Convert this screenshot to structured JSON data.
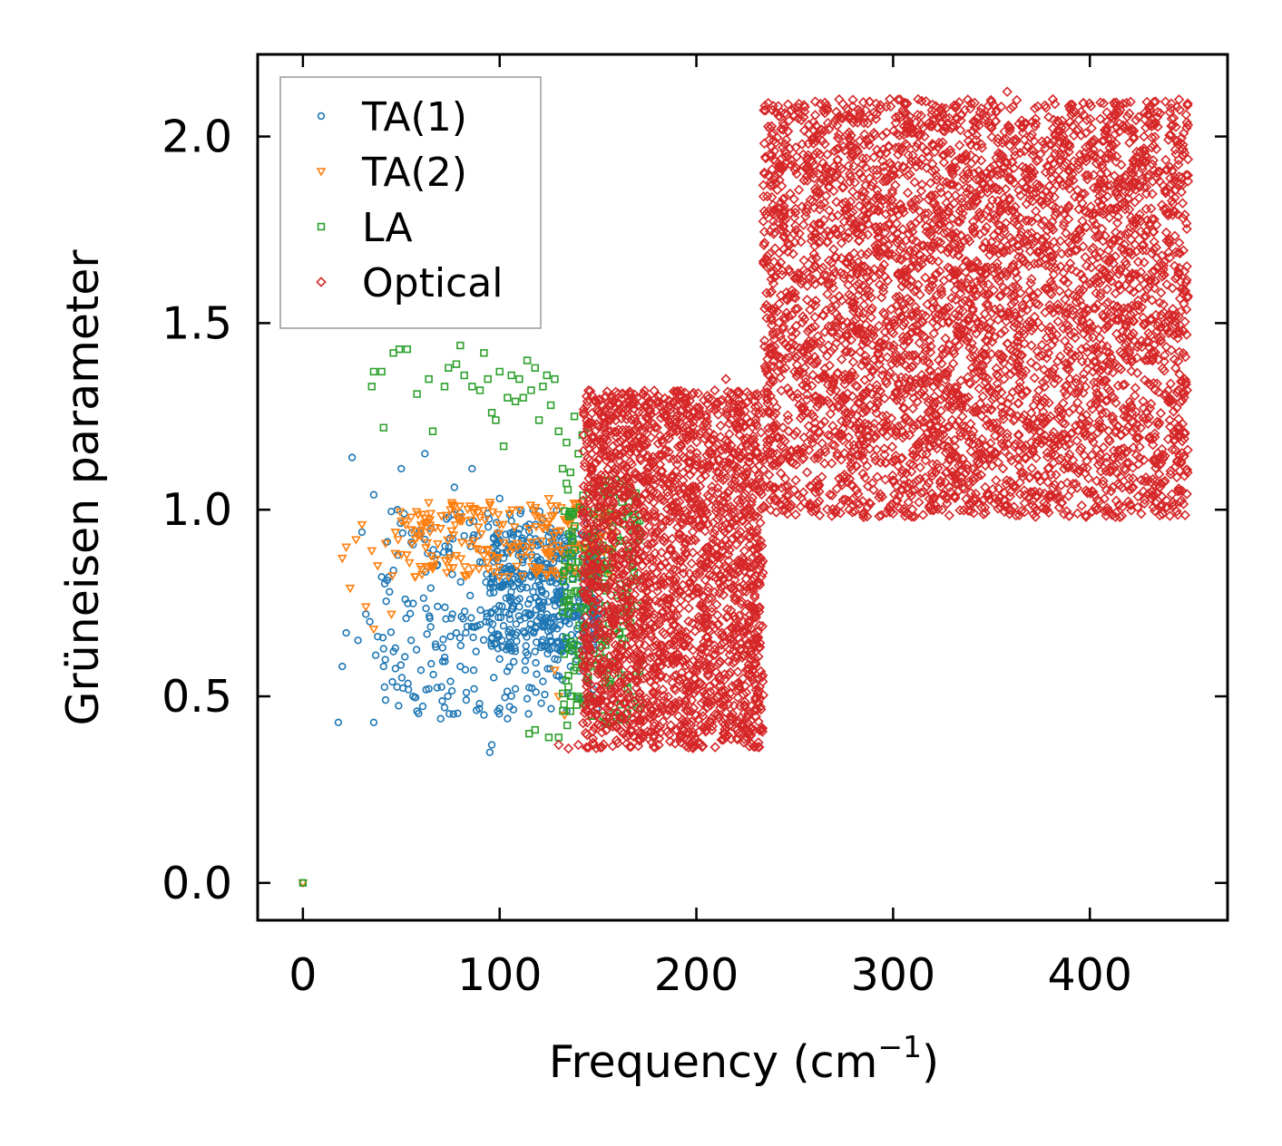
{
  "chart_data": {
    "type": "scatter",
    "title": "",
    "xlabel": "Frequency (cm",
    "xlabel_sup": "−1",
    "xlabel_close": ")",
    "ylabel": "Grüneisen parameter",
    "xlim": [
      -23,
      470
    ],
    "ylim": [
      -0.1,
      2.22
    ],
    "xticks": [
      0,
      100,
      200,
      300,
      400
    ],
    "xtick_labels": [
      "0",
      "100",
      "200",
      "300",
      "400"
    ],
    "yticks": [
      0.0,
      0.5,
      1.0,
      1.5,
      2.0
    ],
    "ytick_labels": [
      "0.0",
      "0.5",
      "1.0",
      "1.5",
      "2.0"
    ],
    "grid": false,
    "legend_position": "top-left",
    "series": [
      {
        "name": "TA(1)",
        "marker": "circle",
        "color": "#1f77b4",
        "points": [
          [
            0,
            0
          ],
          [
            18,
            0.43
          ],
          [
            20,
            0.58
          ],
          [
            22,
            0.67
          ],
          [
            25,
            1.14
          ],
          [
            28,
            0.65
          ],
          [
            30,
            0.94
          ],
          [
            32,
            0.72
          ],
          [
            34,
            0.7
          ],
          [
            36,
            0.43
          ],
          [
            36,
            1.04
          ],
          [
            37,
            0.61
          ],
          [
            38,
            0.66
          ],
          [
            40,
            0.82
          ],
          [
            41,
            0.58
          ],
          [
            42,
            0.49
          ],
          [
            44,
            0.78
          ],
          [
            46,
            0.62
          ],
          [
            48,
            1.0
          ],
          [
            50,
            1.11
          ],
          [
            52,
            0.76
          ],
          [
            55,
            0.65
          ],
          [
            56,
            0.5
          ],
          [
            58,
            0.46
          ],
          [
            60,
            0.57
          ],
          [
            62,
            0.92
          ],
          [
            62,
            1.15
          ],
          [
            64,
            0.52
          ],
          [
            65,
            0.79
          ],
          [
            68,
            0.85
          ],
          [
            70,
            0.44
          ],
          [
            71,
            0.63
          ],
          [
            72,
            0.47
          ],
          [
            74,
            0.98
          ],
          [
            75,
            0.54
          ],
          [
            76,
            0.72
          ],
          [
            77,
            1.06
          ],
          [
            78,
            0.67
          ],
          [
            80,
            0.58
          ],
          [
            82,
            0.93
          ],
          [
            83,
            0.49
          ],
          [
            85,
            0.77
          ],
          [
            86,
            1.11
          ],
          [
            87,
            0.52
          ],
          [
            88,
            0.62
          ],
          [
            90,
            0.86
          ],
          [
            92,
            0.45
          ],
          [
            93,
            0.7
          ],
          [
            94,
            0.99
          ],
          [
            95,
            0.35
          ],
          [
            96,
            0.37
          ],
          [
            97,
            0.55
          ],
          [
            98,
            0.88
          ],
          [
            99,
            0.46
          ],
          [
            100,
            0.6
          ],
          [
            100,
            1.03
          ],
          [
            102,
            0.8
          ],
          [
            104,
            0.44
          ],
          [
            105,
            0.66
          ],
          [
            106,
            0.97
          ],
          [
            108,
            0.52
          ],
          [
            110,
            0.74
          ],
          [
            112,
            0.9
          ],
          [
            113,
            0.57
          ],
          [
            115,
            0.68
          ],
          [
            117,
            1.0
          ],
          [
            118,
            0.62
          ],
          [
            120,
            0.83
          ],
          [
            122,
            0.54
          ],
          [
            124,
            0.72
          ],
          [
            126,
            0.95
          ],
          [
            128,
            0.6
          ],
          [
            130,
            0.78
          ],
          [
            132,
            0.66
          ],
          [
            134,
            0.88
          ],
          [
            136,
            0.58
          ],
          [
            138,
            0.74
          ],
          [
            140,
            0.82
          ],
          [
            142,
            0.7
          ],
          [
            144,
            0.64
          ],
          [
            146,
            0.77
          ],
          [
            148,
            0.68
          ],
          [
            150,
            0.72
          ]
        ],
        "dense": [
          {
            "x": [
              40,
              152
            ],
            "y": [
              0.45,
              1.0
            ],
            "n": 260
          },
          {
            "x": [
              95,
              152
            ],
            "y": [
              0.62,
              0.95
            ],
            "n": 380
          }
        ]
      },
      {
        "name": "TA(2)",
        "marker": "triangle-down",
        "color": "#ff7f0e",
        "points": [
          [
            0,
            0
          ],
          [
            20,
            0.87
          ],
          [
            22,
            0.9
          ],
          [
            24,
            0.79
          ],
          [
            27,
            0.92
          ],
          [
            30,
            0.96
          ],
          [
            32,
            0.74
          ],
          [
            35,
            0.89
          ],
          [
            36,
            0.68
          ],
          [
            38,
            0.85
          ],
          [
            42,
            0.91
          ],
          [
            45,
            0.72
          ],
          [
            47,
            0.94
          ],
          [
            50,
            0.88
          ],
          [
            55,
            0.98
          ],
          [
            60,
            0.93
          ],
          [
            65,
            0.99
          ],
          [
            70,
            0.95
          ],
          [
            75,
            1.0
          ],
          [
            80,
            0.97
          ],
          [
            85,
            1.01
          ],
          [
            90,
            0.98
          ],
          [
            95,
            1.02
          ],
          [
            100,
            0.96
          ],
          [
            105,
            0.99
          ],
          [
            110,
            1.0
          ],
          [
            115,
            0.95
          ],
          [
            120,
            0.98
          ],
          [
            125,
            1.03
          ],
          [
            128,
            0.57
          ],
          [
            130,
            0.5
          ],
          [
            133,
            0.45
          ],
          [
            135,
            0.97
          ],
          [
            140,
            0.99
          ],
          [
            145,
            0.95
          ],
          [
            150,
            0.93
          ]
        ],
        "dense": [
          {
            "x": [
              45,
              158
            ],
            "y": [
              0.82,
              1.02
            ],
            "n": 220
          }
        ]
      },
      {
        "name": "LA",
        "marker": "square",
        "color": "#2ca02c",
        "points": [
          [
            0,
            0
          ],
          [
            35,
            1.33
          ],
          [
            36,
            1.37
          ],
          [
            40,
            1.37
          ],
          [
            41,
            1.22
          ],
          [
            46,
            1.42
          ],
          [
            49,
            1.43
          ],
          [
            53,
            1.43
          ],
          [
            58,
            1.31
          ],
          [
            64,
            1.35
          ],
          [
            66,
            1.21
          ],
          [
            72,
            1.33
          ],
          [
            74,
            1.38
          ],
          [
            78,
            1.39
          ],
          [
            80,
            1.44
          ],
          [
            82,
            1.36
          ],
          [
            86,
            1.33
          ],
          [
            90,
            1.32
          ],
          [
            92,
            1.42
          ],
          [
            94,
            1.35
          ],
          [
            96,
            1.26
          ],
          [
            98,
            1.24
          ],
          [
            100,
            1.37
          ],
          [
            102,
            1.17
          ],
          [
            104,
            1.3
          ],
          [
            106,
            1.36
          ],
          [
            108,
            1.29
          ],
          [
            110,
            1.35
          ],
          [
            112,
            1.3
          ],
          [
            114,
            1.4
          ],
          [
            116,
            1.32
          ],
          [
            118,
            1.38
          ],
          [
            120,
            1.24
          ],
          [
            122,
            1.33
          ],
          [
            124,
            1.36
          ],
          [
            126,
            1.28
          ],
          [
            128,
            1.35
          ],
          [
            130,
            1.21
          ],
          [
            132,
            1.11
          ],
          [
            134,
            1.18
          ],
          [
            136,
            1.1
          ],
          [
            138,
            1.25
          ],
          [
            140,
            1.15
          ],
          [
            142,
            1.2
          ],
          [
            145,
            1.22
          ],
          [
            148,
            1.07
          ],
          [
            115,
            0.4
          ],
          [
            118,
            0.41
          ],
          [
            125,
            0.39
          ],
          [
            130,
            0.39
          ],
          [
            136,
            0.46
          ],
          [
            140,
            0.5
          ],
          [
            145,
            0.55
          ],
          [
            150,
            0.6
          ],
          [
            155,
            0.66
          ],
          [
            160,
            0.72
          ],
          [
            165,
            0.79
          ],
          [
            170,
            0.81
          ]
        ],
        "dense": [
          {
            "x": [
              132,
              172
            ],
            "y": [
              0.42,
              1.08
            ],
            "n": 240
          }
        ]
      },
      {
        "name": "Optical",
        "marker": "diamond",
        "color": "#d62728",
        "points": [
          [
            130,
            0.37
          ],
          [
            135,
            0.36
          ],
          [
            140,
            0.37
          ],
          [
            145,
            0.46
          ],
          [
            150,
            0.56
          ],
          [
            155,
            0.65
          ],
          [
            160,
            0.73
          ],
          [
            166,
            1.31
          ],
          [
            170,
            1.3
          ],
          [
            175,
            1.25
          ],
          [
            180,
            1.22
          ],
          [
            190,
            1.21
          ],
          [
            195,
            1.27
          ],
          [
            200,
            1.25
          ],
          [
            205,
            1.2
          ],
          [
            210,
            1.28
          ],
          [
            215,
            1.35
          ],
          [
            220,
            1.23
          ],
          [
            225,
            0.85
          ],
          [
            230,
            0.6
          ],
          [
            236,
            1.65
          ],
          [
            240,
            1.7
          ],
          [
            250,
            1.62
          ],
          [
            258,
            1.83
          ],
          [
            262,
            1.9
          ],
          [
            270,
            1.92
          ],
          [
            278,
            1.9
          ],
          [
            285,
            0.98
          ],
          [
            290,
            1.91
          ],
          [
            295,
            1.88
          ],
          [
            300,
            1.91
          ],
          [
            305,
            1.92
          ],
          [
            310,
            1.95
          ],
          [
            312,
            2.01
          ],
          [
            316,
            2.0
          ],
          [
            320,
            1.98
          ],
          [
            322,
            2.06
          ],
          [
            326,
            1.95
          ],
          [
            330,
            1.91
          ],
          [
            334,
            1.8
          ],
          [
            338,
            1.9
          ],
          [
            342,
            1.94
          ],
          [
            345,
            1.78
          ],
          [
            348,
            1.85
          ],
          [
            352,
            2.04
          ],
          [
            355,
            2.08
          ],
          [
            358,
            2.12
          ],
          [
            362,
            1.96
          ],
          [
            366,
            2.01
          ],
          [
            370,
            1.89
          ],
          [
            375,
            1.86
          ],
          [
            380,
            1.76
          ],
          [
            385,
            1.72
          ],
          [
            390,
            1.66
          ],
          [
            395,
            1.58
          ],
          [
            400,
            1.5
          ],
          [
            405,
            1.46
          ],
          [
            410,
            1.39
          ],
          [
            412,
            1.14
          ],
          [
            416,
            1.2
          ],
          [
            420,
            1.42
          ],
          [
            425,
            1.44
          ],
          [
            430,
            1.45
          ],
          [
            435,
            1.46
          ],
          [
            440,
            1.3
          ],
          [
            445,
            1.2
          ],
          [
            448,
            1.19
          ],
          [
            300,
            0.99
          ],
          [
            310,
            1.12
          ],
          [
            320,
            1.19
          ],
          [
            330,
            1.24
          ],
          [
            340,
            1.2
          ],
          [
            350,
            1.27
          ],
          [
            360,
            1.26
          ],
          [
            370,
            1.22
          ],
          [
            380,
            1.25
          ],
          [
            395,
            1.23
          ]
        ],
        "dense": [
          {
            "x": [
              142,
              234
            ],
            "y": [
              0.36,
              1.32
            ],
            "n": 2200
          },
          {
            "x": [
              234,
              450
            ],
            "y": [
              0.98,
              2.1
            ],
            "n": 4200
          }
        ]
      }
    ]
  }
}
